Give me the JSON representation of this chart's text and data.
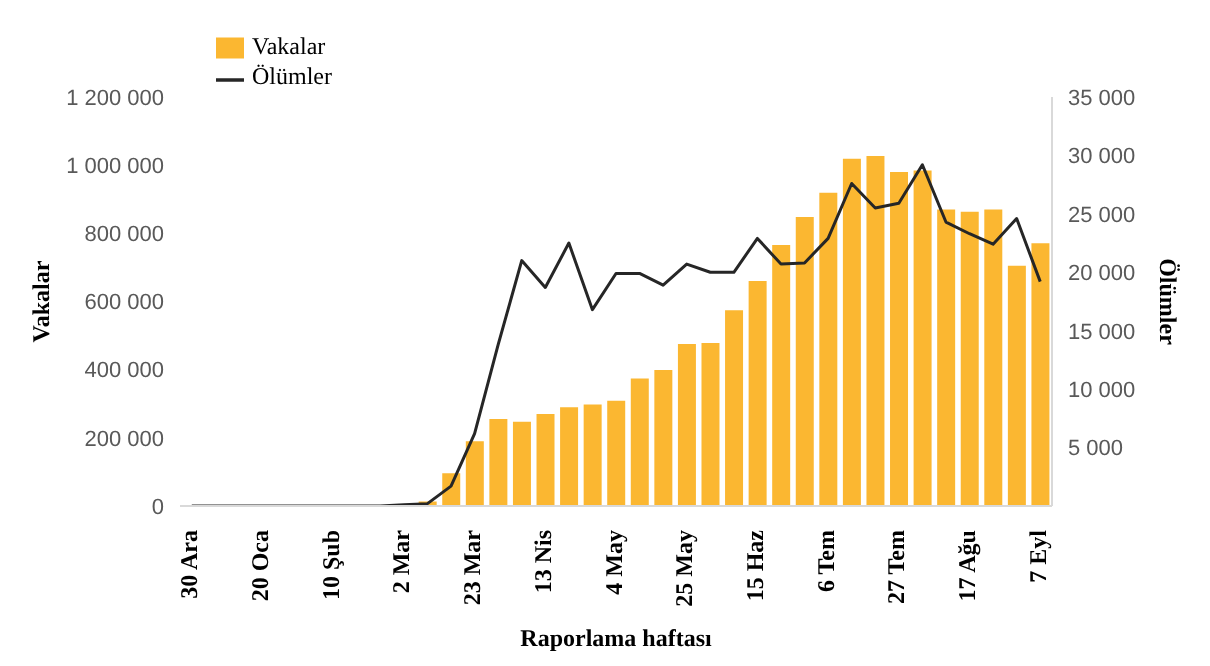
{
  "chart_data": {
    "type": "bar",
    "xlabel": "Raporlama haftası",
    "ylabel": "Vakalar",
    "y2label": "Ölümler",
    "categories": [
      "30 Ara",
      null,
      null,
      "20 Oca",
      null,
      null,
      "10 Şub",
      null,
      null,
      "2 Mar",
      null,
      null,
      "23 Mar",
      null,
      null,
      "13 Nis",
      null,
      null,
      "4 May",
      null,
      null,
      "25 May",
      null,
      null,
      "15 Haz",
      null,
      null,
      "6 Tem",
      null,
      null,
      "27 Tem",
      null,
      null,
      "17 Ağu",
      null,
      null,
      "7 Eyl"
    ],
    "series": [
      {
        "name": "Vakalar",
        "color": "#fbb731",
        "values": [
          0,
          0,
          0,
          0,
          0,
          0,
          0,
          0,
          0,
          2000,
          16000,
          99000,
          193000,
          258000,
          250000,
          273000,
          293000,
          301000,
          312000,
          377000,
          402000,
          478000,
          481000,
          577000,
          663000,
          769000,
          851000,
          922000,
          1022000,
          1030000,
          983000,
          987000,
          873000,
          866000,
          873000,
          708000,
          774000
        ]
      },
      {
        "name": "Ölümler",
        "type": "line",
        "axis": "y2",
        "color": "#262626",
        "values": [
          0,
          0,
          0,
          0,
          0,
          0,
          0,
          0,
          0,
          100,
          200,
          1700,
          6200,
          13800,
          21000,
          18700,
          22500,
          16800,
          19900,
          19900,
          18900,
          20700,
          20000,
          20000,
          22900,
          20700,
          20800,
          22900,
          27600,
          25500,
          25900,
          29200,
          24300,
          23300,
          22400,
          24600,
          19200
        ]
      }
    ],
    "ylim": [
      0,
      1200000
    ],
    "yticks": [
      0,
      {
        "value": 200000,
        "label": "200 000"
      },
      {
        "value": 400000,
        "label": "400 000"
      },
      {
        "value": 600000,
        "label": "600 000"
      },
      {
        "value": 800000,
        "label": "800 000"
      },
      {
        "value": 1000000,
        "label": "1 000 000"
      },
      {
        "value": 1200000,
        "label": "1 200 000"
      }
    ],
    "y2lim": [
      0,
      35000
    ],
    "y2ticks": [
      {
        "value": 5000,
        "label": "5 000"
      },
      {
        "value": 10000,
        "label": "10 000"
      },
      {
        "value": 15000,
        "label": "15 000"
      },
      {
        "value": 20000,
        "label": "20 000"
      },
      {
        "value": 25000,
        "label": "25 000"
      },
      {
        "value": 30000,
        "label": "30 000"
      },
      {
        "value": 35000,
        "label": "35 000"
      }
    ],
    "grid": false,
    "legend": "top left",
    "marker": "none",
    "line_style": "solid"
  }
}
